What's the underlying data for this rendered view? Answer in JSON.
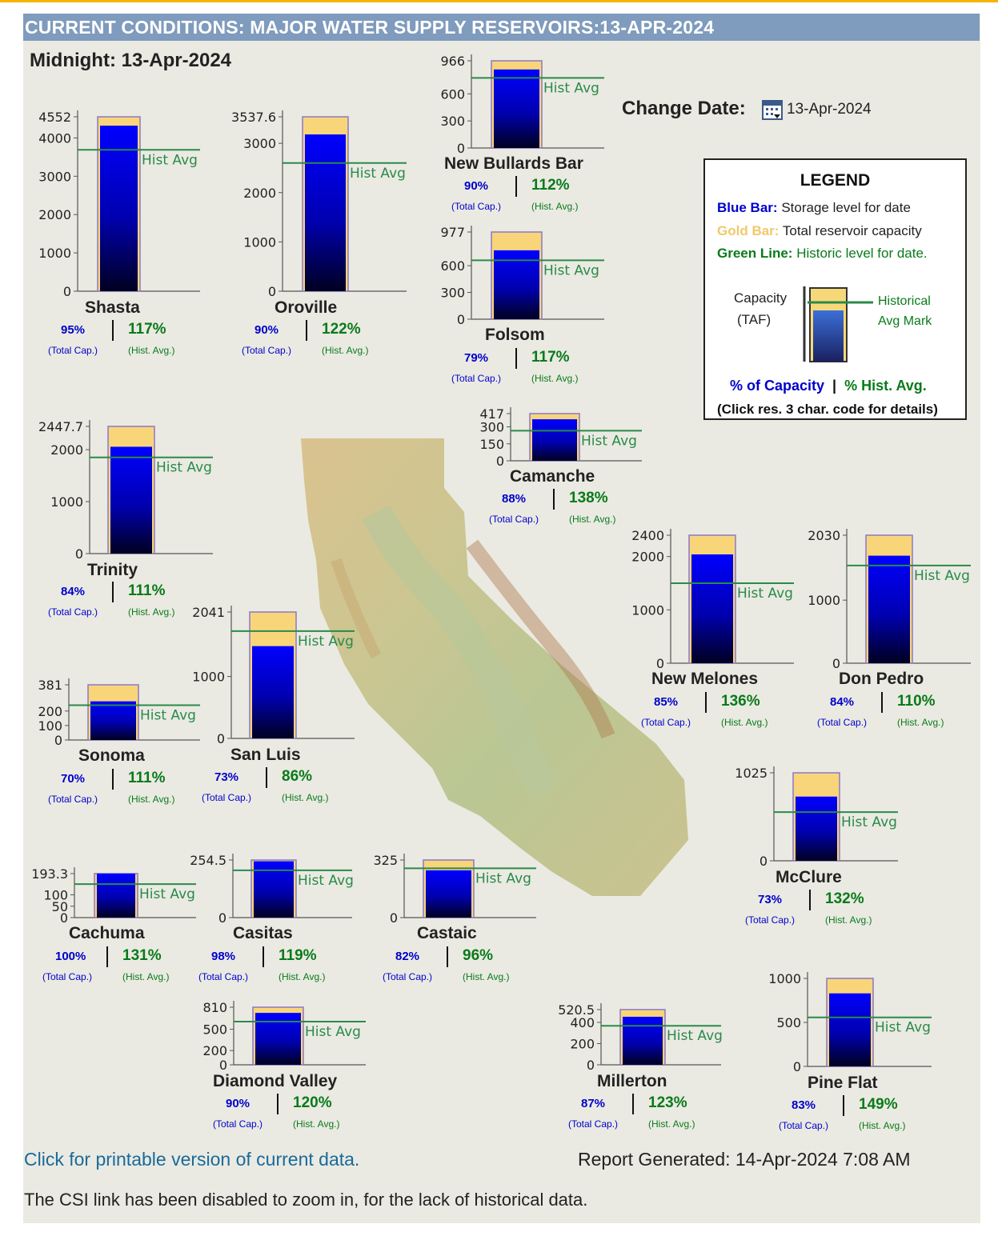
{
  "header": {
    "title": "CURRENT CONDITIONS: MAJOR WATER SUPPLY RESERVOIRS:13-APR-2024"
  },
  "midnight": "Midnight: 13-Apr-2024",
  "change_date": {
    "label": "Change Date",
    "value": "13-Apr-2024"
  },
  "common": {
    "hist_avg": "Hist Avg",
    "total_cap": "(Total Cap.)",
    "hist_avg_label": "(Hist. Avg.)"
  },
  "legend": {
    "title": "LEGEND",
    "blue_key": "Blue Bar:",
    "blue_text": "Storage level for date",
    "gold_key": "Gold Bar:",
    "gold_text": "Total reservoir capacity",
    "green_key": "Green Line:",
    "green_text": "Historic level for date.",
    "capacity": "Capacity",
    "taf": "(TAF)",
    "historical": "Historical",
    "avg_mark": "Avg Mark",
    "pct_cap": "% of Capacity",
    "pct_hist": "% Hist. Avg.",
    "click_note": "(Click res. 3 char. code for details)"
  },
  "chart_data": {
    "type": "bar",
    "title": "CURRENT CONDITIONS: MAJOR WATER SUPPLY RESERVOIRS:13-APR-2024",
    "ylabel": "Capacity (TAF)",
    "series": [
      {
        "name": "Storage level for date",
        "color": "#0000ee"
      },
      {
        "name": "Total reservoir capacity",
        "color": "#f9d57a"
      },
      {
        "name": "Historic level for date",
        "color": "#2a8a4a"
      }
    ],
    "reservoirs": [
      {
        "name": "Shasta",
        "capacity": 4552,
        "storage": 4320,
        "hist": 3690,
        "ticks": [
          "4552",
          "4000",
          "3000",
          "2000",
          "1000",
          "0"
        ],
        "tick_values": [
          4552,
          4000,
          3000,
          2000,
          1000,
          0
        ],
        "pct_cap": "95%",
        "pct_hist": "117%"
      },
      {
        "name": "Oroville",
        "capacity": 3537.6,
        "storage": 3180,
        "hist": 2600,
        "ticks": [
          "3537.6",
          "3000",
          "2000",
          "1000",
          "0"
        ],
        "tick_values": [
          3537.6,
          3000,
          2000,
          1000,
          0
        ],
        "pct_cap": "90%",
        "pct_hist": "122%"
      },
      {
        "name": "New Bullards Bar",
        "capacity": 966,
        "storage": 870,
        "hist": 777,
        "ticks": [
          "966",
          "600",
          "300",
          "0"
        ],
        "tick_values": [
          966,
          600,
          300,
          0
        ],
        "pct_cap": "90%",
        "pct_hist": "112%"
      },
      {
        "name": "Folsom",
        "capacity": 977,
        "storage": 772,
        "hist": 660,
        "ticks": [
          "977",
          "600",
          "300",
          "0"
        ],
        "tick_values": [
          977,
          600,
          300,
          0
        ],
        "pct_cap": "79%",
        "pct_hist": "117%"
      },
      {
        "name": "Trinity",
        "capacity": 2447.7,
        "storage": 2056,
        "hist": 1852,
        "ticks": [
          "2447.7",
          "2000",
          "1000",
          "0"
        ],
        "tick_values": [
          2447.7,
          2000,
          1000,
          0
        ],
        "pct_cap": "84%",
        "pct_hist": "111%"
      },
      {
        "name": "Camanche",
        "capacity": 417,
        "storage": 367,
        "hist": 266,
        "ticks": [
          "417",
          "300",
          "150",
          "0"
        ],
        "tick_values": [
          417,
          300,
          150,
          0
        ],
        "pct_cap": "88%",
        "pct_hist": "138%"
      },
      {
        "name": "New Melones",
        "capacity": 2400,
        "storage": 2040,
        "hist": 1500,
        "ticks": [
          "2400",
          "2000",
          "1000",
          "0"
        ],
        "tick_values": [
          2400,
          2000,
          1000,
          0
        ],
        "pct_cap": "85%",
        "pct_hist": "136%"
      },
      {
        "name": "Don Pedro",
        "capacity": 2030,
        "storage": 1705,
        "hist": 1550,
        "ticks": [
          "2030",
          "1000",
          "0"
        ],
        "tick_values": [
          2030,
          1000,
          0
        ],
        "pct_cap": "84%",
        "pct_hist": "110%"
      },
      {
        "name": "San Luis",
        "capacity": 2041,
        "storage": 1490,
        "hist": 1733,
        "ticks": [
          "2041",
          "1000",
          "0"
        ],
        "tick_values": [
          2041,
          1000,
          0
        ],
        "pct_cap": "73%",
        "pct_hist": "86%"
      },
      {
        "name": "Sonoma",
        "capacity": 381,
        "storage": 267,
        "hist": 240,
        "ticks": [
          "381",
          "200",
          "100",
          "0"
        ],
        "tick_values": [
          381,
          200,
          100,
          0
        ],
        "pct_cap": "70%",
        "pct_hist": "111%"
      },
      {
        "name": "McClure",
        "capacity": 1025,
        "storage": 748,
        "hist": 567,
        "ticks": [
          "1025",
          "0"
        ],
        "tick_values": [
          1025,
          0
        ],
        "pct_cap": "73%",
        "pct_hist": "132%"
      },
      {
        "name": "Cachuma",
        "capacity": 193.3,
        "storage": 193.3,
        "hist": 147,
        "ticks": [
          "193.3",
          "100",
          "50",
          "0"
        ],
        "tick_values": [
          193.3,
          100,
          50,
          0
        ],
        "pct_cap": "100%",
        "pct_hist": "131%"
      },
      {
        "name": "Casitas",
        "capacity": 254.5,
        "storage": 249,
        "hist": 209,
        "ticks": [
          "254.5",
          "0"
        ],
        "tick_values": [
          254.5,
          0
        ],
        "pct_cap": "98%",
        "pct_hist": "119%"
      },
      {
        "name": "Castaic",
        "capacity": 325,
        "storage": 267,
        "hist": 278,
        "ticks": [
          "325",
          "0"
        ],
        "tick_values": [
          325,
          0
        ],
        "pct_cap": "82%",
        "pct_hist": "96%"
      },
      {
        "name": "Diamond Valley",
        "capacity": 810,
        "storage": 730,
        "hist": 608,
        "ticks": [
          "810",
          "500",
          "200",
          "0"
        ],
        "tick_values": [
          810,
          500,
          200,
          0
        ],
        "pct_cap": "90%",
        "pct_hist": "120%"
      },
      {
        "name": "Millerton",
        "capacity": 520.5,
        "storage": 453,
        "hist": 368,
        "ticks": [
          "520.5",
          "400",
          "200",
          "0"
        ],
        "tick_values": [
          520.5,
          400,
          200,
          0
        ],
        "pct_cap": "87%",
        "pct_hist": "123%"
      },
      {
        "name": "Pine Flat",
        "capacity": 1000,
        "storage": 830,
        "hist": 557,
        "ticks": [
          "1000",
          "500",
          "0"
        ],
        "tick_values": [
          1000,
          500,
          0
        ],
        "pct_cap": "83%",
        "pct_hist": "149%"
      }
    ]
  },
  "footer": {
    "printable_link": "Click for printable version of current data.",
    "report_generated": "Report Generated: 14-Apr-2024 7:08 AM",
    "note": "The CSI link has been disabled to zoom in, for the lack of historical data."
  }
}
